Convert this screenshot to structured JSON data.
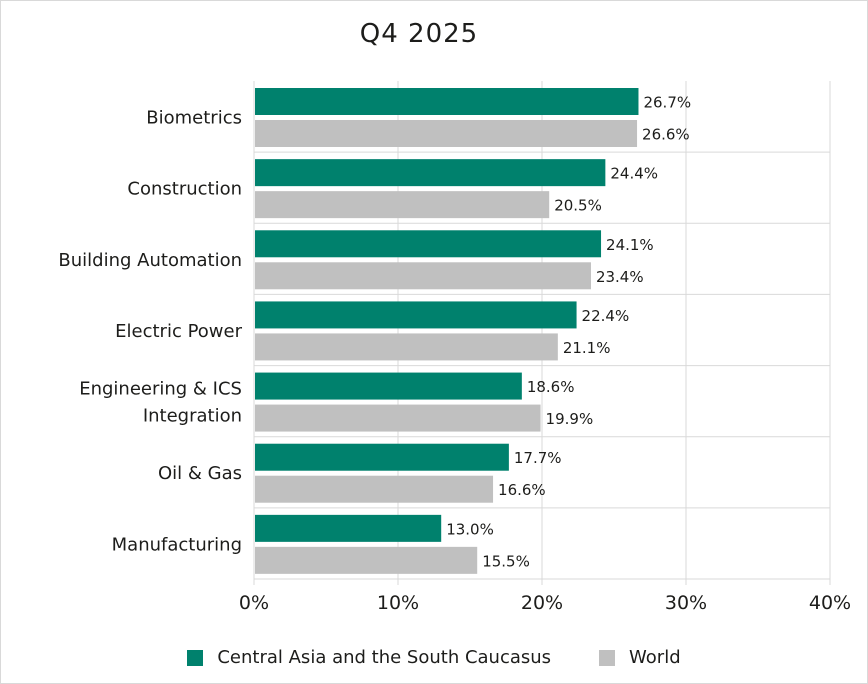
{
  "chart_data": {
    "type": "bar",
    "orientation": "horizontal",
    "title": "Q4 2025",
    "categories": [
      "Biometrics",
      "Construction",
      "Building Automation",
      "Electric Power",
      "Engineering & ICS Integration",
      "Oil & Gas",
      "Manufacturing"
    ],
    "series": [
      {
        "name": "Central Asia and the South Caucasus",
        "color": "#00816d",
        "values": [
          26.7,
          24.4,
          24.1,
          22.4,
          18.6,
          17.7,
          13.0
        ],
        "labels": [
          "26.7%",
          "24.4%",
          "24.1%",
          "22.4%",
          "18.6%",
          "17.7%",
          "13.0%"
        ]
      },
      {
        "name": "World",
        "color": "#c0c0c0",
        "values": [
          26.6,
          20.5,
          23.4,
          21.1,
          19.9,
          16.6,
          15.5
        ],
        "labels": [
          "26.6%",
          "20.5%",
          "23.4%",
          "21.1%",
          "19.9%",
          "16.6%",
          "15.5%"
        ]
      }
    ],
    "xlim": [
      0,
      40
    ],
    "xticks": [
      0,
      10,
      20,
      30,
      40
    ],
    "xtick_labels": [
      "0%",
      "10%",
      "20%",
      "30%",
      "40%"
    ],
    "grid": true,
    "legend_position": "bottom"
  }
}
